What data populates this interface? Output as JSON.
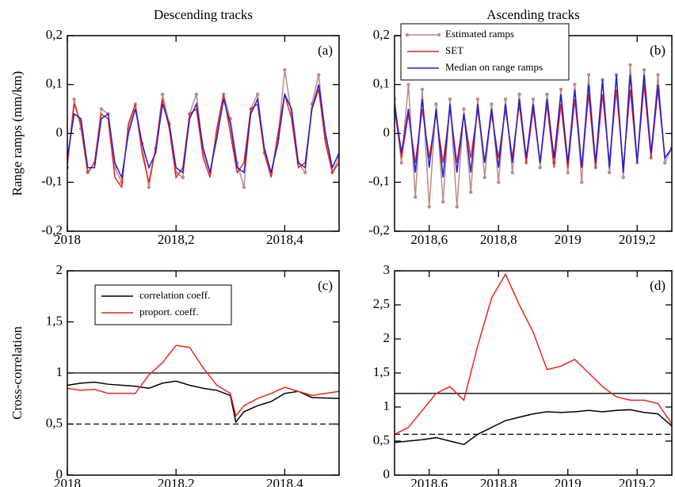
{
  "chart_data": [
    {
      "type": "line",
      "title": "Descending tracks",
      "ylabel": "Range ramps (mm/km)",
      "annotation": "(a)",
      "xlim": [
        2018,
        2018.5
      ],
      "ylim": [
        -0.2,
        0.2
      ],
      "xticks": [
        2018,
        {
          "value": 2018.2,
          "label": "2018,2"
        },
        {
          "value": 2018.4,
          "label": "2018,4"
        }
      ],
      "yticks": [
        {
          "value": -0.2,
          "label": "-0,2"
        },
        {
          "value": -0.1,
          "label": "-0,1"
        },
        0,
        {
          "value": 0.1,
          "label": "0,1"
        },
        {
          "value": 0.2,
          "label": "0,2"
        }
      ],
      "x": [
        2018,
        2018.0125,
        2018.025,
        2018.0375,
        2018.05,
        2018.0625,
        2018.075,
        2018.0875,
        2018.1,
        2018.1125,
        2018.125,
        2018.1375,
        2018.15,
        2018.1625,
        2018.175,
        2018.1875,
        2018.2,
        2018.2125,
        2018.225,
        2018.2375,
        2018.25,
        2018.2625,
        2018.275,
        2018.2875,
        2018.3,
        2018.3125,
        2018.325,
        2018.3375,
        2018.35,
        2018.3625,
        2018.375,
        2018.3875,
        2018.4,
        2018.4125,
        2018.425,
        2018.4375,
        2018.45,
        2018.4625,
        2018.475,
        2018.4875,
        2018.5
      ],
      "series": [
        {
          "color": "#bc8a86",
          "markers": true,
          "values": [
            -0.07,
            0.07,
            0.01,
            -0.08,
            -0.06,
            0.05,
            0.04,
            -0.07,
            -0.1,
            0.01,
            0.06,
            -0.02,
            -0.11,
            -0.03,
            0.08,
            0.02,
            -0.08,
            -0.09,
            0.04,
            0.08,
            -0.04,
            -0.08,
            0.0,
            0.08,
            0.03,
            -0.06,
            -0.11,
            0.05,
            0.08,
            -0.04,
            -0.08,
            -0.01,
            0.13,
            0.04,
            -0.06,
            -0.08,
            0.06,
            0.12,
            -0.01,
            -0.08,
            -0.05
          ]
        },
        {
          "color": "#e8261f",
          "markers": false,
          "values": [
            -0.06,
            0.06,
            0.02,
            -0.08,
            -0.06,
            0.04,
            0.03,
            -0.09,
            -0.11,
            0.02,
            0.06,
            -0.04,
            -0.1,
            -0.03,
            0.07,
            0.01,
            -0.09,
            -0.07,
            0.04,
            0.05,
            -0.05,
            -0.09,
            0.01,
            0.08,
            0.0,
            -0.08,
            -0.06,
            0.05,
            0.06,
            -0.04,
            -0.09,
            0.0,
            0.08,
            0.03,
            -0.07,
            -0.06,
            0.05,
            0.09,
            -0.02,
            -0.08,
            -0.06
          ]
        },
        {
          "color": "#1f1fd6",
          "markers": false,
          "values": [
            -0.05,
            0.04,
            0.03,
            -0.07,
            -0.07,
            0.03,
            0.04,
            -0.06,
            -0.09,
            0.0,
            0.05,
            -0.02,
            -0.07,
            -0.04,
            0.06,
            0.02,
            -0.07,
            -0.08,
            0.03,
            0.06,
            -0.03,
            -0.08,
            -0.01,
            0.07,
            0.02,
            -0.07,
            -0.08,
            0.04,
            0.07,
            -0.03,
            -0.08,
            -0.02,
            0.08,
            0.05,
            -0.06,
            -0.07,
            0.05,
            0.1,
            0.0,
            -0.07,
            -0.04
          ]
        }
      ]
    },
    {
      "type": "line",
      "title": "Ascending tracks",
      "annotation": "(b)",
      "legend": "upper-left",
      "xlim": [
        2018.5,
        2019.3
      ],
      "ylim": [
        -0.2,
        0.2
      ],
      "xticks": [
        {
          "value": 2018.6,
          "label": "2018,6"
        },
        {
          "value": 2018.8,
          "label": "2018,8"
        },
        2019,
        {
          "value": 2019.2,
          "label": "2019,2"
        }
      ],
      "yticks": [
        {
          "value": -0.2,
          "label": "-0,2"
        },
        {
          "value": -0.1,
          "label": "-0,1"
        },
        0,
        {
          "value": 0.1,
          "label": "0,1"
        },
        {
          "value": 0.2,
          "label": "0,2"
        }
      ],
      "x": [
        2018.5,
        2018.52,
        2018.54,
        2018.56,
        2018.58,
        2018.6,
        2018.62,
        2018.64,
        2018.66,
        2018.68,
        2018.7,
        2018.72,
        2018.74,
        2018.76,
        2018.78,
        2018.8,
        2018.82,
        2018.84,
        2018.86,
        2018.88,
        2018.9,
        2018.92,
        2018.94,
        2018.96,
        2018.98,
        2019,
        2019.02,
        2019.04,
        2019.06,
        2019.08,
        2019.1,
        2019.12,
        2019.14,
        2019.16,
        2019.18,
        2019.2,
        2019.22,
        2019.24,
        2019.26,
        2019.28,
        2019.3
      ],
      "series": [
        {
          "name": "Estimated ramps",
          "color": "#bc8a86",
          "markers": true,
          "values": [
            0.07,
            -0.06,
            0.1,
            -0.13,
            0.09,
            -0.15,
            0.06,
            -0.14,
            0.07,
            -0.15,
            0.05,
            -0.12,
            0.07,
            -0.09,
            0.06,
            -0.1,
            0.07,
            -0.08,
            0.08,
            -0.06,
            0.07,
            -0.07,
            0.08,
            -0.06,
            0.09,
            -0.08,
            0.1,
            -0.1,
            0.12,
            -0.07,
            0.11,
            -0.08,
            0.12,
            -0.09,
            0.14,
            -0.06,
            0.13,
            -0.05,
            0.12,
            -0.06,
            -0.03
          ]
        },
        {
          "name": "SET",
          "color": "#e8261f",
          "markers": false,
          "values": [
            0.05,
            -0.05,
            0.04,
            -0.06,
            0.05,
            -0.05,
            0.04,
            -0.06,
            0.05,
            -0.06,
            0.04,
            -0.05,
            0.05,
            -0.06,
            0.04,
            -0.05,
            0.05,
            -0.05,
            0.06,
            -0.06,
            0.05,
            -0.06,
            0.06,
            -0.07,
            0.06,
            -0.07,
            0.07,
            -0.07,
            0.08,
            -0.07,
            0.08,
            -0.06,
            0.09,
            -0.07,
            0.09,
            -0.06,
            0.1,
            -0.05,
            0.09,
            -0.05,
            -0.03
          ]
        },
        {
          "name": "Median on range ramps",
          "color": "#1f1fd6",
          "markers": false,
          "values": [
            0.06,
            -0.04,
            0.05,
            -0.08,
            0.07,
            -0.07,
            0.05,
            -0.09,
            0.06,
            -0.08,
            0.04,
            -0.08,
            0.06,
            -0.06,
            0.05,
            -0.07,
            0.06,
            -0.06,
            0.07,
            -0.05,
            0.06,
            -0.06,
            0.07,
            -0.05,
            0.08,
            -0.06,
            0.09,
            -0.07,
            0.1,
            -0.06,
            0.11,
            -0.07,
            0.12,
            -0.08,
            0.12,
            -0.06,
            0.12,
            -0.04,
            0.1,
            -0.05,
            -0.03
          ]
        }
      ]
    },
    {
      "type": "line",
      "ylabel": "Cross-correlation",
      "annotation": "(c)",
      "legend": "upper-left",
      "xlim": [
        2018,
        2018.5
      ],
      "ylim": [
        0,
        2
      ],
      "xticks": [
        2018,
        {
          "value": 2018.2,
          "label": "2018,2"
        },
        {
          "value": 2018.4,
          "label": "2018,4"
        }
      ],
      "yticks": [
        0,
        {
          "value": 0.5,
          "label": "0,5"
        },
        1,
        {
          "value": 1.5,
          "label": "1,5"
        },
        2
      ],
      "hlines": [
        {
          "value": 1,
          "dashed": false
        },
        {
          "value": 0.5,
          "dashed": true
        }
      ],
      "x": [
        2018,
        2018.025,
        2018.05,
        2018.075,
        2018.1,
        2018.125,
        2018.15,
        2018.175,
        2018.2,
        2018.225,
        2018.25,
        2018.275,
        2018.3,
        2018.31,
        2018.325,
        2018.35,
        2018.375,
        2018.4,
        2018.425,
        2018.45,
        2018.5
      ],
      "series": [
        {
          "name": "correlation coeff.",
          "color": "#000000",
          "markers": false,
          "values": [
            0.88,
            0.9,
            0.91,
            0.89,
            0.88,
            0.87,
            0.85,
            0.9,
            0.92,
            0.88,
            0.85,
            0.83,
            0.78,
            0.52,
            0.62,
            0.68,
            0.72,
            0.8,
            0.82,
            0.76,
            0.75
          ]
        },
        {
          "name": "proport. coeff.",
          "color": "#e8261f",
          "markers": false,
          "values": [
            0.85,
            0.83,
            0.84,
            0.8,
            0.8,
            0.8,
            0.98,
            1.1,
            1.27,
            1.25,
            1.05,
            0.88,
            0.8,
            0.58,
            0.68,
            0.75,
            0.8,
            0.86,
            0.82,
            0.78,
            0.82
          ]
        }
      ]
    },
    {
      "type": "line",
      "annotation": "(d)",
      "xlim": [
        2018.5,
        2019.3
      ],
      "ylim": [
        0,
        3
      ],
      "xticks": [
        {
          "value": 2018.6,
          "label": "2018,6"
        },
        {
          "value": 2018.8,
          "label": "2018,8"
        },
        2019,
        {
          "value": 2019.2,
          "label": "2019,2"
        }
      ],
      "yticks": [
        0,
        {
          "value": 0.5,
          "label": "0,5"
        },
        1,
        {
          "value": 1.5,
          "label": "1,5"
        },
        2,
        {
          "value": 2.5,
          "label": "2,5"
        },
        3
      ],
      "hlines": [
        {
          "value": 1.2,
          "dashed": false
        },
        {
          "value": 0.6,
          "dashed": true
        }
      ],
      "x": [
        2018.5,
        2018.54,
        2018.58,
        2018.62,
        2018.66,
        2018.7,
        2018.74,
        2018.78,
        2018.82,
        2018.86,
        2018.9,
        2018.94,
        2018.98,
        2019.02,
        2019.06,
        2019.1,
        2019.14,
        2019.18,
        2019.22,
        2019.26,
        2019.3
      ],
      "series": [
        {
          "color": "#000000",
          "markers": false,
          "values": [
            0.48,
            0.5,
            0.52,
            0.55,
            0.5,
            0.45,
            0.6,
            0.7,
            0.8,
            0.85,
            0.9,
            0.93,
            0.92,
            0.93,
            0.95,
            0.93,
            0.95,
            0.96,
            0.92,
            0.9,
            0.72
          ]
        },
        {
          "color": "#e8261f",
          "markers": false,
          "values": [
            0.6,
            0.7,
            0.95,
            1.2,
            1.3,
            1.1,
            1.9,
            2.6,
            2.95,
            2.5,
            2.1,
            1.55,
            1.6,
            1.7,
            1.5,
            1.3,
            1.15,
            1.1,
            1.1,
            1.05,
            0.75
          ]
        }
      ]
    }
  ]
}
